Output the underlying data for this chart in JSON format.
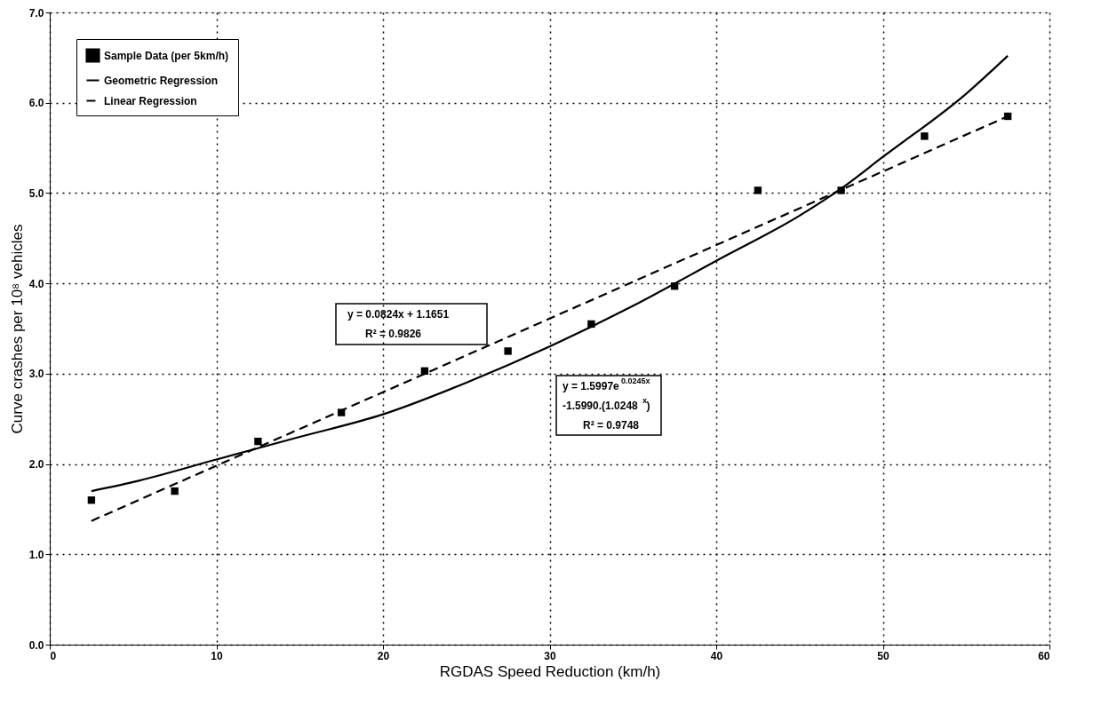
{
  "chart_data": {
    "type": "scatter",
    "xlabel": "RGDAS Speed Reduction (km/h)",
    "ylabel": "Curve crashes per 10⁸ vehicles",
    "xlim": [
      0,
      60
    ],
    "xticks": [
      0,
      10,
      20,
      30,
      40,
      50,
      60
    ],
    "ylim": [
      0,
      7
    ],
    "yticks": [
      {
        "value": 0,
        "label": "0.0"
      },
      {
        "value": 1,
        "label": "1.0"
      },
      {
        "value": 2,
        "label": "2.0"
      },
      {
        "value": 3,
        "label": "3.0"
      },
      {
        "value": 4,
        "label": "4.0"
      },
      {
        "value": 5,
        "label": "5.0"
      },
      {
        "value": 6,
        "label": "6.0"
      },
      {
        "value": 7,
        "label": "7.0"
      }
    ],
    "grid": true,
    "legend": "top left",
    "series": [
      {
        "name": "Sample Data (per 5km/h)",
        "type": "scatter",
        "marker": "square",
        "color": "#000000",
        "x": [
          2.5,
          7.5,
          12.5,
          17.5,
          22.5,
          27.5,
          32.5,
          37.5,
          42.5,
          47.5,
          52.5,
          57.5
        ],
        "values": [
          1.6,
          1.7,
          2.25,
          2.57,
          3.03,
          3.25,
          3.55,
          3.97,
          5.03,
          5.03,
          5.63,
          5.85
        ]
      },
      {
        "name": "Geometric Regression",
        "type": "line",
        "line_style": "solid",
        "color": "#000000",
        "x": [
          2.5,
          5,
          10,
          15,
          20,
          25,
          30,
          35,
          40,
          45,
          47.5,
          50,
          55,
          57.5
        ],
        "values": [
          1.7,
          1.8,
          2.05,
          2.3,
          2.55,
          2.9,
          3.3,
          3.75,
          4.25,
          4.75,
          5.05,
          5.4,
          6.1,
          6.52
        ]
      },
      {
        "name": "Linear Regression",
        "type": "line",
        "line_style": "dashed",
        "color": "#000000",
        "x": [
          2.5,
          57.5
        ],
        "values": [
          1.37,
          5.85
        ]
      }
    ],
    "annotations": [
      "y = 0.0824x + 1.1651",
      "R² = 0.9826",
      "y = 1.5997e$^{0.0245x}$",
      "-1.5990.(1.0248$^{x}$)",
      "R² = 0.9748"
    ]
  }
}
